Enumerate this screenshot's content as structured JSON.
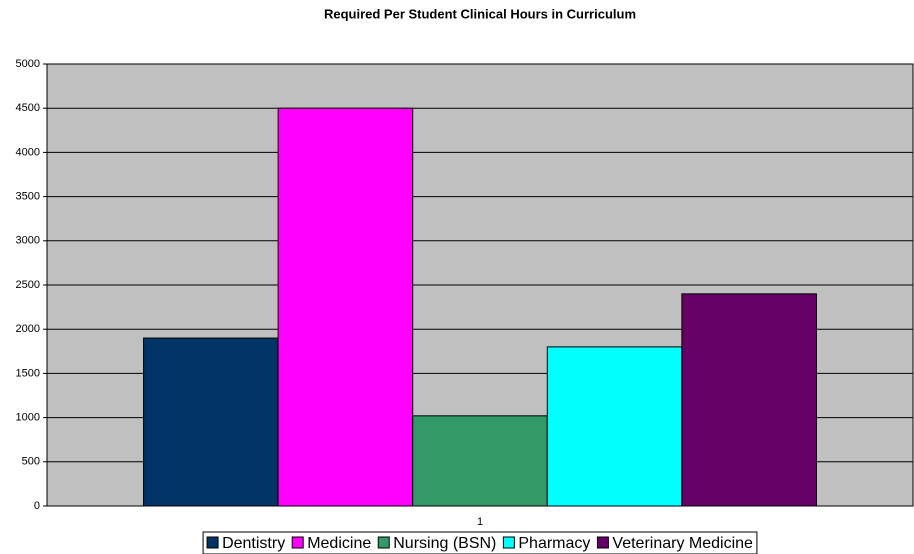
{
  "chart_data": {
    "type": "bar",
    "title": "Required Per Student Clinical Hours in Curriculum",
    "categories": [
      "1"
    ],
    "series": [
      {
        "name": "Dentistry",
        "color": "#003366",
        "values": [
          1900
        ]
      },
      {
        "name": "Medicine",
        "color": "#ff00ff",
        "values": [
          4500
        ]
      },
      {
        "name": "Nursing (BSN)",
        "color": "#339966",
        "values": [
          1020
        ]
      },
      {
        "name": "Pharmacy",
        "color": "#00ffff",
        "values": [
          1800
        ]
      },
      {
        "name": "Veterinary Medicine",
        "color": "#660066",
        "values": [
          2400
        ]
      }
    ],
    "ylim": [
      0,
      5000
    ],
    "yticks": [
      0,
      500,
      1000,
      1500,
      2000,
      2500,
      3000,
      3500,
      4000,
      4500,
      5000
    ],
    "grid": true,
    "legend": "bottom"
  }
}
